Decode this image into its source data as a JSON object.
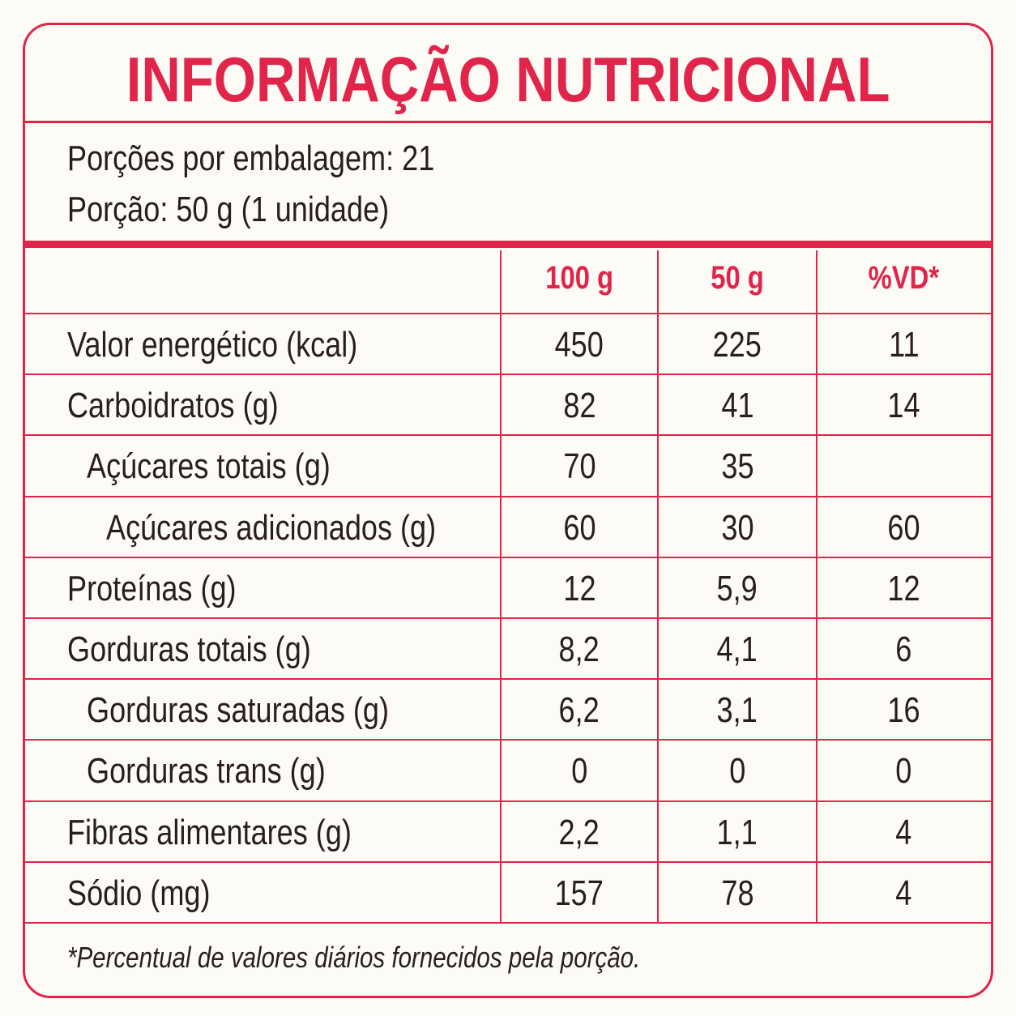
{
  "title": "INFORMAÇÃO NUTRICIONAL",
  "servings": [
    "Porções por embalagem: 21",
    "Porção: 50 g (1 unidade)"
  ],
  "table": {
    "header": [
      "100 g",
      "50 g",
      "%VD*"
    ],
    "rows": [
      {
        "label": "Valor energético (kcal)",
        "cells": [
          "450",
          "225",
          "11"
        ]
      },
      {
        "label": "Carboidratos (g)",
        "cells": [
          "82",
          "41",
          "14"
        ]
      },
      {
        "label": "Açúcares totais (g)",
        "cells": [
          "70",
          "35",
          null
        ]
      },
      {
        "label": "Açúcares adicionados (g)",
        "cells": [
          "60",
          "30",
          "60"
        ]
      },
      {
        "label": "Proteínas (g)",
        "cells": [
          "12",
          "5,9",
          "12"
        ]
      },
      {
        "label": "Gorduras totais (g)",
        "cells": [
          "8,2",
          "4,1",
          "6"
        ]
      },
      {
        "label": "Gorduras saturadas (g)",
        "cells": [
          "6,2",
          "3,1",
          "16"
        ]
      },
      {
        "label": "Gorduras trans (g)",
        "cells": [
          "0",
          "0",
          "0"
        ]
      },
      {
        "label": "Fibras alimentares (g)",
        "cells": [
          "2,2",
          "1,1",
          "4"
        ]
      },
      {
        "label": "Sódio (mg)",
        "cells": [
          "157",
          "78",
          "4"
        ]
      }
    ]
  },
  "footnote": "*Percentual de valores diários fornecidos pela porção."
}
